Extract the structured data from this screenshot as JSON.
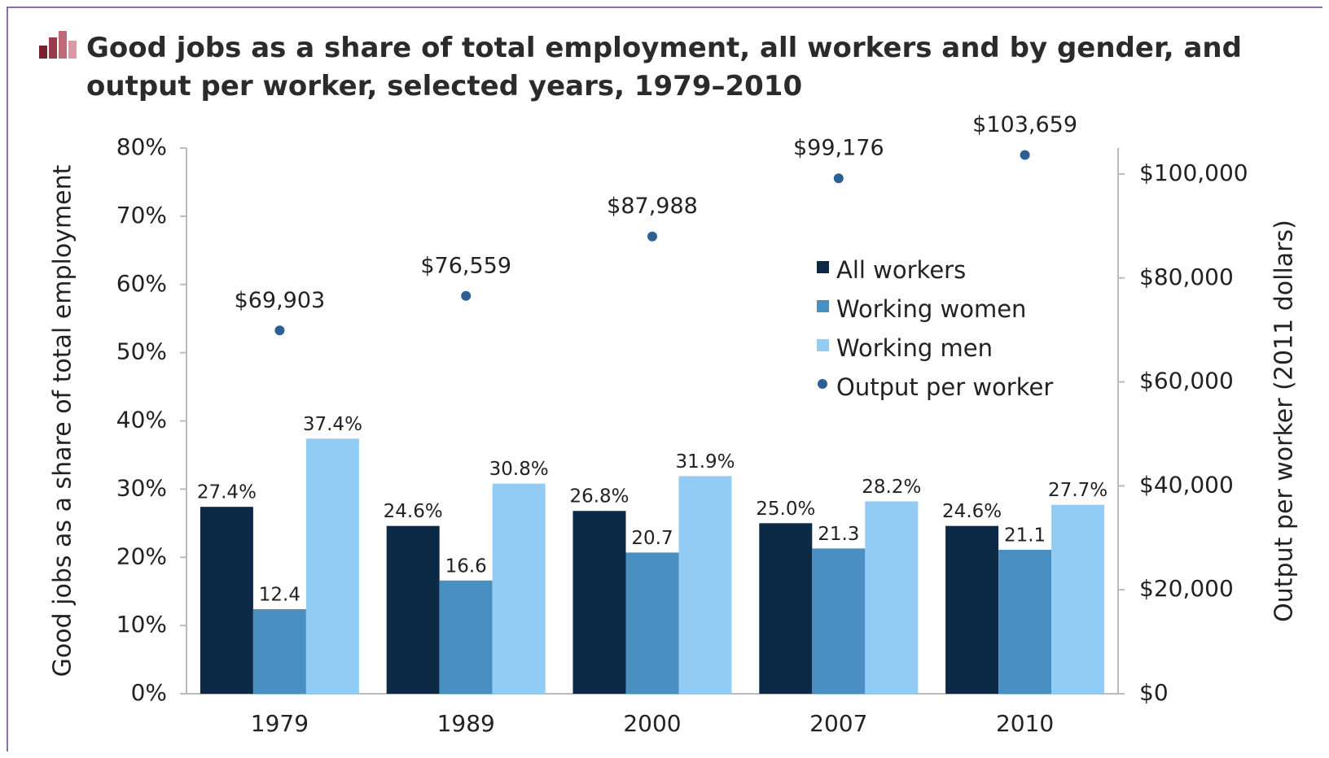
{
  "chart_data": {
    "type": "bar",
    "title": "Good jobs as a share of total employment, all workers and by gender, and output per worker, selected years, 1979–2010",
    "y_label": "Good jobs as a share of total employment",
    "y2_label": "Output per worker (2011 dollars)",
    "categories": [
      "1979",
      "1989",
      "2000",
      "2007",
      "2010"
    ],
    "series": [
      {
        "name": "All workers",
        "color": "#0c2a46",
        "values": [
          27.4,
          24.6,
          26.8,
          25.0,
          24.6
        ],
        "value_labels": [
          "27.4%",
          "24.6%",
          "26.8%",
          "25.0%",
          "24.6%"
        ]
      },
      {
        "name": "Working women",
        "color": "#4a8fc1",
        "values": [
          12.4,
          16.6,
          20.7,
          21.3,
          21.1
        ]
      },
      {
        "name": "Working men",
        "color": "#92cbf3",
        "values": [
          37.4,
          30.8,
          31.9,
          28.2,
          27.7
        ],
        "value_labels": [
          "37.4%",
          "30.8%",
          "31.9%",
          "28.2%",
          "27.7%"
        ]
      },
      {
        "name": "Output per worker",
        "type": "scatter",
        "axis": "y2",
        "color": "#2c5f94",
        "values": [
          69903,
          76559,
          87988,
          99176,
          103659
        ],
        "value_labels": [
          "$69,903",
          "$76,559",
          "$87,988",
          "$99,176",
          "$103,659"
        ]
      }
    ],
    "ylim": [
      0,
      80
    ],
    "yticks": [
      {
        "value": 0,
        "label": "0%"
      },
      {
        "value": 10,
        "label": "10%"
      },
      {
        "value": 20,
        "label": "20%"
      },
      {
        "value": 30,
        "label": "30%"
      },
      {
        "value": 40,
        "label": "40%"
      },
      {
        "value": 50,
        "label": "50%"
      },
      {
        "value": 60,
        "label": "60%"
      },
      {
        "value": 70,
        "label": "70%"
      },
      {
        "value": 80,
        "label": "80%"
      }
    ],
    "y2lim": [
      0,
      105000
    ],
    "y2ticks": [
      {
        "value": 0,
        "label": "$0"
      },
      {
        "value": 20000,
        "label": "$20,000"
      },
      {
        "value": 40000,
        "label": "$40,000"
      },
      {
        "value": 60000,
        "label": "$60,000"
      },
      {
        "value": 80000,
        "label": "$80,000"
      },
      {
        "value": 100000,
        "label": "$100,000"
      }
    ],
    "legend": "upper right",
    "grid": false
  }
}
